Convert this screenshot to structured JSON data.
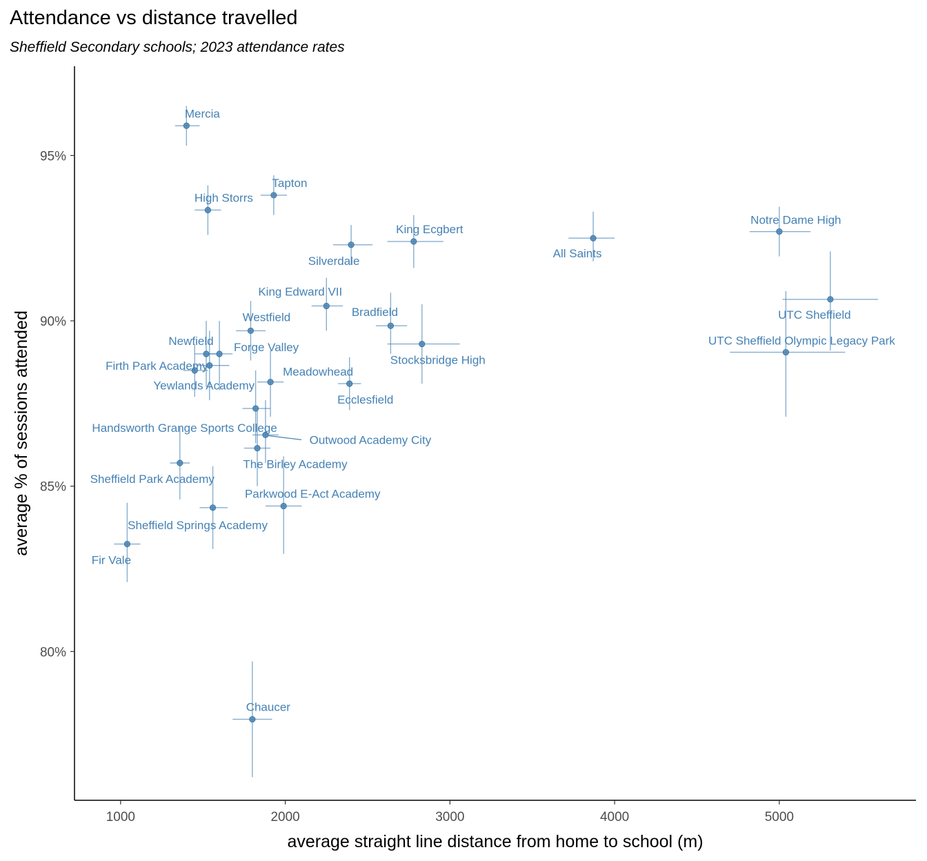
{
  "chart_data": {
    "type": "scatter",
    "title": "Attendance vs distance travelled",
    "subtitle": "Sheffield Secondary schools; 2023 attendance rates",
    "xlabel": "average straight line distance from home to school (m)",
    "ylabel": "average % of sessions attended",
    "xlim": [
      720,
      5830
    ],
    "ylim": [
      75.5,
      97.7
    ],
    "xticks": [
      1000,
      2000,
      3000,
      4000,
      5000
    ],
    "xtick_labels": [
      "1000",
      "2000",
      "3000",
      "4000",
      "5000"
    ],
    "yticks": [
      80,
      85,
      90,
      95
    ],
    "ytick_labels": [
      "80%",
      "85%",
      "90%",
      "95%"
    ],
    "grid": false,
    "color": "#4682b4",
    "points": [
      {
        "label": "Mercia",
        "x": 1400,
        "y": 95.9,
        "xerr": [
          1330,
          1480
        ],
        "yerr": [
          95.3,
          96.5
        ]
      },
      {
        "label": "Tapton",
        "x": 1930,
        "y": 93.8,
        "xerr": [
          1850,
          2010
        ],
        "yerr": [
          93.2,
          94.4
        ]
      },
      {
        "label": "High Storrs",
        "x": 1530,
        "y": 93.35,
        "xerr": [
          1450,
          1610
        ],
        "yerr": [
          92.6,
          94.1
        ]
      },
      {
        "label": "King Ecgbert",
        "x": 2780,
        "y": 92.4,
        "xerr": [
          2620,
          2960
        ],
        "yerr": [
          91.6,
          93.2
        ]
      },
      {
        "label": "Silverdale",
        "x": 2400,
        "y": 92.3,
        "xerr": [
          2290,
          2530
        ],
        "yerr": [
          91.7,
          92.9
        ]
      },
      {
        "label": "All Saints",
        "x": 3870,
        "y": 92.5,
        "xerr": [
          3720,
          4000
        ],
        "yerr": [
          91.8,
          93.3
        ]
      },
      {
        "label": "Notre Dame High",
        "x": 5000,
        "y": 92.7,
        "xerr": [
          4820,
          5190
        ],
        "yerr": [
          91.95,
          93.45
        ]
      },
      {
        "label": "UTC Sheffield",
        "x": 5310,
        "y": 90.65,
        "xerr": [
          5020,
          5600
        ],
        "yerr": [
          89.1,
          92.1
        ]
      },
      {
        "label": "UTC Sheffield Olympic Legacy Park",
        "x": 5040,
        "y": 89.05,
        "xerr": [
          4700,
          5400
        ],
        "yerr": [
          87.1,
          90.9
        ]
      },
      {
        "label": "King Edward VII",
        "x": 2250,
        "y": 90.45,
        "xerr": [
          2160,
          2350
        ],
        "yerr": [
          89.7,
          91.3
        ]
      },
      {
        "label": "Bradfield",
        "x": 2640,
        "y": 89.85,
        "xerr": [
          2550,
          2740
        ],
        "yerr": [
          89.0,
          90.85
        ]
      },
      {
        "label": "Stocksbridge High",
        "x": 2830,
        "y": 89.3,
        "xerr": [
          2620,
          3060
        ],
        "yerr": [
          88.1,
          90.5
        ]
      },
      {
        "label": "Westfield",
        "x": 1790,
        "y": 89.7,
        "xerr": [
          1700,
          1880
        ],
        "yerr": [
          88.8,
          90.6
        ]
      },
      {
        "label": "Newfield",
        "x": 1520,
        "y": 89.0,
        "xerr": [
          1450,
          1590
        ],
        "yerr": [
          88.0,
          90.0
        ]
      },
      {
        "label": "Forge Valley",
        "x": 1600,
        "y": 89.0,
        "xerr": [
          1520,
          1680
        ],
        "yerr": [
          87.9,
          90.0
        ]
      },
      {
        "label": "Firth Park Academy",
        "x": 1450,
        "y": 88.5,
        "xerr": [
          1380,
          1530
        ],
        "yerr": [
          87.7,
          89.3
        ]
      },
      {
        "label": "Yewlands Academy",
        "x": 1540,
        "y": 88.65,
        "xerr": [
          1460,
          1660
        ],
        "yerr": [
          87.6,
          89.7
        ]
      },
      {
        "label": "Meadowhead",
        "x": 1910,
        "y": 88.15,
        "xerr": [
          1830,
          1990
        ],
        "yerr": [
          87.1,
          89.1
        ]
      },
      {
        "label": "Ecclesfield",
        "x": 2390,
        "y": 88.1,
        "xerr": [
          2320,
          2460
        ],
        "yerr": [
          87.3,
          88.9
        ]
      },
      {
        "label": "Handsworth Grange Sports College",
        "x": 1820,
        "y": 87.35,
        "xerr": [
          1740,
          1910
        ],
        "yerr": [
          86.3,
          88.5
        ]
      },
      {
        "label": "Outwood Academy City",
        "x": 1880,
        "y": 86.55,
        "xerr": [
          1800,
          1960
        ],
        "yerr": [
          85.7,
          87.6
        ]
      },
      {
        "label": "The Birley Academy",
        "x": 1830,
        "y": 86.15,
        "xerr": [
          1750,
          1910
        ],
        "yerr": [
          85.0,
          87.3
        ]
      },
      {
        "label": "Sheffield Park Academy",
        "x": 1360,
        "y": 85.7,
        "xerr": [
          1300,
          1420
        ],
        "yerr": [
          84.6,
          86.8
        ]
      },
      {
        "label": "Parkwood E-Act Academy",
        "x": 1990,
        "y": 84.4,
        "xerr": [
          1880,
          2100
        ],
        "yerr": [
          82.95,
          85.9
        ]
      },
      {
        "label": "Sheffield Springs Academy",
        "x": 1560,
        "y": 84.35,
        "xerr": [
          1480,
          1650
        ],
        "yerr": [
          83.1,
          85.6
        ]
      },
      {
        "label": "Fir Vale",
        "x": 1040,
        "y": 83.25,
        "xerr": [
          960,
          1120
        ],
        "yerr": [
          82.1,
          84.5
        ]
      },
      {
        "label": "Chaucer",
        "x": 1800,
        "y": 77.95,
        "xerr": [
          1680,
          1920
        ],
        "yerr": [
          76.2,
          79.7
        ]
      }
    ]
  }
}
